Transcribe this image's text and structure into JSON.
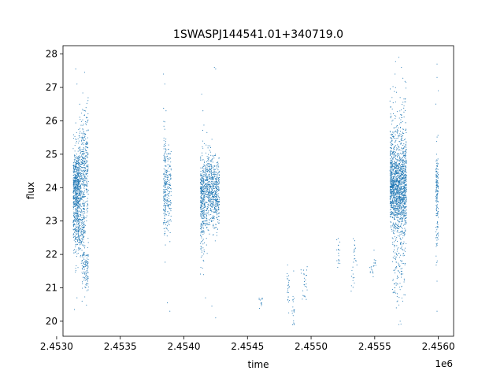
{
  "chart_data": {
    "type": "scatter",
    "title": "1SWASPJ144541.01+340719.0",
    "xlabel": "time",
    "ylabel": "flux",
    "x_offset_label": "1e6",
    "xlim": [
      2.45305,
      2.45612
    ],
    "ylim": [
      19.55,
      28.25
    ],
    "x_ticks": [
      2.453,
      2.4535,
      2.454,
      2.4545,
      2.455,
      2.4555,
      2.456
    ],
    "x_tick_labels": [
      "2.4530",
      "2.4535",
      "2.4540",
      "2.4545",
      "2.4550",
      "2.4555",
      "2.4560"
    ],
    "y_ticks": [
      20,
      21,
      22,
      23,
      24,
      25,
      26,
      27,
      28
    ],
    "y_tick_labels": [
      "20",
      "21",
      "22",
      "23",
      "24",
      "25",
      "26",
      "27",
      "28"
    ],
    "grid": false,
    "marker_color": "#1f77b4",
    "series": [
      {
        "clusters": [
          {
            "x_range": [
              2.45313,
              2.45318
            ],
            "y_center": 24.1,
            "y_spread": 0.55,
            "count": 500
          },
          {
            "x_range": [
              2.45313,
              2.45322
            ],
            "y_center": 22.8,
            "y_spread": 0.5,
            "count": 350
          },
          {
            "x_range": [
              2.45318,
              2.45325
            ],
            "y_center": 24.6,
            "y_spread": 0.8,
            "count": 400
          },
          {
            "x_range": [
              2.4532,
              2.45325
            ],
            "y_center": 21.7,
            "y_spread": 0.45,
            "count": 120
          },
          {
            "x_range": [
              2.45384,
              2.45386
            ],
            "y_center": 24.0,
            "y_spread": 0.8,
            "count": 150
          },
          {
            "x_range": [
              2.45386,
              2.4539
            ],
            "y_center": 23.9,
            "y_spread": 0.6,
            "count": 150
          },
          {
            "x_range": [
              2.45413,
              2.45428
            ],
            "y_center": 23.9,
            "y_spread": 0.55,
            "count": 900
          },
          {
            "x_range": [
              2.45413,
              2.45416
            ],
            "y_center": 23.0,
            "y_spread": 0.7,
            "count": 120
          },
          {
            "x_range": [
              2.45459,
              2.45462
            ],
            "y_center": 20.55,
            "y_spread": 0.12,
            "count": 12
          },
          {
            "x_range": [
              2.45481,
              2.45483
            ],
            "y_center": 20.9,
            "y_spread": 0.35,
            "count": 25
          },
          {
            "x_range": [
              2.45485,
              2.45487
            ],
            "y_center": 20.5,
            "y_spread": 0.35,
            "count": 20
          },
          {
            "x_range": [
              2.45492,
              2.45497
            ],
            "y_center": 21.2,
            "y_spread": 0.3,
            "count": 25
          },
          {
            "x_range": [
              2.4552,
              2.45523
            ],
            "y_center": 22.05,
            "y_spread": 0.2,
            "count": 18
          },
          {
            "x_range": [
              2.45531,
              2.45534
            ],
            "y_center": 21.4,
            "y_spread": 0.2,
            "count": 12
          },
          {
            "x_range": [
              2.45533,
              2.45536
            ],
            "y_center": 22.1,
            "y_spread": 0.2,
            "count": 15
          },
          {
            "x_range": [
              2.45546,
              2.45549
            ],
            "y_center": 21.5,
            "y_spread": 0.15,
            "count": 12
          },
          {
            "x_range": [
              2.45548,
              2.45551
            ],
            "y_center": 21.9,
            "y_spread": 0.2,
            "count": 10
          },
          {
            "x_range": [
              2.45562,
              2.45575
            ],
            "y_center": 24.0,
            "y_spread": 0.6,
            "count": 1300
          },
          {
            "x_range": [
              2.45562,
              2.45575
            ],
            "y_center": 25.2,
            "y_spread": 0.9,
            "count": 250
          },
          {
            "x_range": [
              2.45564,
              2.45574
            ],
            "y_center": 22.3,
            "y_spread": 0.9,
            "count": 200
          },
          {
            "x_range": [
              2.45598,
              2.456
            ],
            "y_center": 24.0,
            "y_spread": 0.55,
            "count": 120
          },
          {
            "x_range": [
              2.45598,
              2.456
            ],
            "y_center": 22.8,
            "y_spread": 0.6,
            "count": 40
          }
        ],
        "outliers": [
          [
            2.45315,
            27.55
          ],
          [
            2.45316,
            27.1
          ],
          [
            2.45322,
            27.45
          ],
          [
            2.45314,
            20.35
          ],
          [
            2.45316,
            20.7
          ],
          [
            2.4532,
            20.6
          ],
          [
            2.45384,
            27.4
          ],
          [
            2.45385,
            27.1
          ],
          [
            2.45386,
            26.3
          ],
          [
            2.45389,
            20.3
          ],
          [
            2.45387,
            20.55
          ],
          [
            2.45414,
            26.8
          ],
          [
            2.45415,
            26.3
          ],
          [
            2.45424,
            27.6
          ],
          [
            2.45425,
            27.55
          ],
          [
            2.45422,
            20.45
          ],
          [
            2.45425,
            20.1
          ],
          [
            2.45417,
            20.7
          ],
          [
            2.45569,
            27.9
          ],
          [
            2.45571,
            27.6
          ],
          [
            2.45566,
            27.4
          ],
          [
            2.4557,
            20.0
          ],
          [
            2.45569,
            19.9
          ],
          [
            2.45567,
            20.4
          ],
          [
            2.45572,
            20.6
          ],
          [
            2.45599,
            27.7
          ],
          [
            2.45599,
            27.3
          ],
          [
            2.456,
            26.9
          ],
          [
            2.45598,
            26.5
          ],
          [
            2.45599,
            20.3
          ],
          [
            2.45599,
            21.2
          ]
        ]
      }
    ]
  }
}
